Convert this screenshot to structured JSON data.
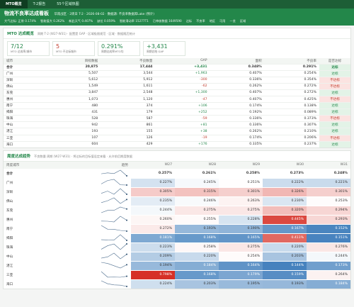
{
  "tabs": [
    "MTO概览",
    "T-2报告",
    "55个区域热图"
  ],
  "header": {
    "title": "物流不良率达成看板",
    "meta": "华南战区 · 2周日 T-2 · 2026-08-02 · 数据源: 不良率数据库Lake (预计)",
    "stats": [
      "大气达标: 正常 0.174%",
      "智能值大 0.262%",
      "新此天气 0.407%",
      "缺位 0.059%",
      "智能滑动率 15277T1",
      "已审核数据 1649590",
      "达标",
      "不良率",
      "地区",
      "可用",
      "一览",
      "区域"
    ]
  },
  "summary": {
    "title": "MTO 达成概览",
    "subtitle": "周期 T-2 (W27-W31) · 配置是 GAP · 区域极限规范 · 区域 · 数据随后统计",
    "kpis": [
      {
        "value": "7/12",
        "label": "MTO 达成率/城市"
      },
      {
        "value": "5",
        "label": "MTO 不达标城市"
      },
      {
        "value": "0.291%",
        "label": "周期达成率MTO均"
      },
      {
        "value": "+3,431",
        "label": "周期总结 GAP"
      }
    ],
    "columns": [
      "城市",
      "目标数据",
      "不良数量",
      "GAP",
      "面积",
      "不良率",
      "是否达标"
    ],
    "rows": [
      [
        "合计",
        "20,875",
        "17,444",
        "+3,431",
        "0.348%",
        "0.291%",
        "达标"
      ],
      [
        "广州",
        "5,507",
        "3,544",
        "+1,963",
        "0.407%",
        "0.254%",
        "达标"
      ],
      [
        "深圳",
        "5,612",
        "5,912",
        "-300",
        "0.336%",
        "0.354%",
        "不达标"
      ],
      [
        "佛山",
        "1,549",
        "1,611",
        "-62",
        "0.262%",
        "0.272%",
        "不达标"
      ],
      [
        "东莞",
        "3,847",
        "2,548",
        "+1,300",
        "0.407%",
        "0.272%",
        "达标"
      ],
      [
        "惠州",
        "1,073",
        "1,120",
        "-47",
        "0.407%",
        "0.425%",
        "不达标"
      ],
      [
        "南宁",
        "480",
        "374",
        "+106",
        "0.174%",
        "0.138%",
        "达标"
      ],
      [
        "揭阳",
        "431",
        "179",
        "+252",
        "0.192%",
        "0.089%",
        "达标"
      ],
      [
        "珠海",
        "528",
        "587",
        "-59",
        "0.336%",
        "0.373%",
        "不达标"
      ],
      [
        "中山",
        "942",
        "861",
        "+81",
        "0.336%",
        "0.307%",
        "达标"
      ],
      [
        "湛江",
        "193",
        "155",
        "+38",
        "0.262%",
        "0.210%",
        "达标"
      ],
      [
        "三亚",
        "107",
        "126",
        "-19",
        "0.174%",
        "0.206%",
        "不达标"
      ],
      [
        "海口",
        "604",
        "429",
        "+176",
        "0.335%",
        "0.237%",
        "达标"
      ]
    ]
  },
  "trend": {
    "title": "周度达成趋势",
    "subtitle": "不良数量 周期 (W27-W31) · 将达标的目标值设定来看 · 允许前后期度数据",
    "columns": [
      "周度城市",
      "趋势",
      "W27",
      "W28",
      "W29",
      "W30",
      "W31"
    ],
    "rows": [
      {
        "city": "合计",
        "values": [
          0.257,
          0.261,
          0.258,
          0.273,
          0.248
        ],
        "value_labels": [
          "0.257%",
          "0.261%",
          "0.258%",
          "0.273%",
          "0.248%"
        ]
      },
      {
        "city": "广州",
        "values": [
          0.227,
          0.245,
          0.251,
          0.222,
          0.221
        ],
        "value_labels": [
          "0.227%",
          "0.245%",
          "0.251%",
          "0.222%",
          "0.221%"
        ]
      },
      {
        "city": "深圳",
        "values": [
          0.305,
          0.315,
          0.301,
          0.326,
          0.301
        ],
        "value_labels": [
          "0.305%",
          "0.315%",
          "0.301%",
          "0.326%",
          "0.301%"
        ]
      },
      {
        "city": "佛山",
        "values": [
          0.235,
          0.246,
          0.263,
          0.23,
          0.253
        ],
        "value_labels": [
          "0.235%",
          "0.246%",
          "0.263%",
          "0.230%",
          "0.253%"
        ]
      },
      {
        "city": "东莞",
        "values": [
          0.244,
          0.275,
          0.275,
          0.32,
          0.294
        ],
        "value_labels": [
          "0.244%",
          "0.275%",
          "0.275%",
          "0.320%",
          "0.294%"
        ]
      },
      {
        "city": "惠州",
        "values": [
          0.26,
          0.255,
          0.228,
          0.445,
          0.293
        ],
        "value_labels": [
          "0.260%",
          "0.255%",
          "0.228%",
          "0.445%",
          "0.293%"
        ]
      },
      {
        "city": "南宁",
        "values": [
          0.272,
          0.193,
          0.19,
          0.167,
          0.152
        ],
        "value_labels": [
          "0.272%",
          "0.193%",
          "0.190%",
          "0.167%",
          "0.152%"
        ]
      },
      {
        "city": "揭阳",
        "values": [
          0.181,
          0.168,
          0.165,
          0.411,
          0.151
        ],
        "value_labels": [
          "0.181%",
          "0.168%",
          "0.165%",
          "0.411%",
          "0.151%"
        ]
      },
      {
        "city": "珠海",
        "values": [
          0.223,
          0.258,
          0.275,
          0.22,
          0.276
        ],
        "value_labels": [
          "0.223%",
          "0.258%",
          "0.275%",
          "0.220%",
          "0.276%"
        ]
      },
      {
        "city": "中山",
        "values": [
          0.209,
          0.22,
          0.254,
          0.203,
          0.244
        ],
        "value_labels": [
          "0.209%",
          "0.220%",
          "0.254%",
          "0.203%",
          "0.244%"
        ]
      },
      {
        "city": "湛江",
        "values": [
          0.194,
          0.184,
          0.164,
          0.144,
          0.173
        ],
        "value_labels": [
          "0.194%",
          "0.184%",
          "0.164%",
          "0.144%",
          "0.173%"
        ]
      },
      {
        "city": "三亚",
        "values": [
          0.798,
          0.168,
          0.179,
          0.159,
          0.264
        ],
        "value_labels": [
          "0.798%",
          "0.168%",
          "0.179%",
          "0.159%",
          "0.264%"
        ]
      },
      {
        "city": "海口",
        "values": [
          0.224,
          0.203,
          0.195,
          0.193,
          0.184
        ],
        "value_labels": [
          "0.224%",
          "0.203%",
          "0.195%",
          "0.193%",
          "0.184%"
        ]
      }
    ]
  }
}
